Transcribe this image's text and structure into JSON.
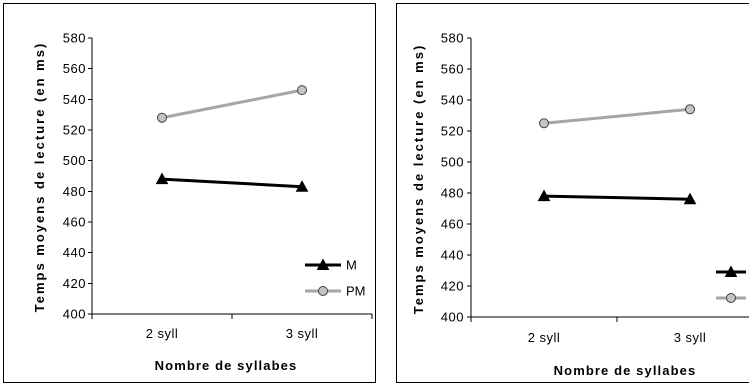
{
  "chart_data": [
    {
      "type": "line",
      "xlabel": "Nombre de syllabes",
      "ylabel": "Temps moyens de lecture (en ms)",
      "categories": [
        "2 syll",
        "3 syll"
      ],
      "ylim": [
        400,
        580
      ],
      "yticks": [
        400,
        420,
        440,
        460,
        480,
        500,
        520,
        540,
        560,
        580
      ],
      "grid": false,
      "legend": "bottom-right",
      "series": [
        {
          "name": "M",
          "values": [
            488,
            483
          ],
          "color": "#000000",
          "marker": "triangle",
          "marker_fill": "#000000",
          "marker_edge": "#000000"
        },
        {
          "name": "PM",
          "values": [
            528,
            546
          ],
          "color": "#a6a6a6",
          "marker": "circle",
          "marker_fill": "#c4c4c4",
          "marker_edge": "#404040"
        }
      ]
    },
    {
      "type": "line",
      "xlabel": "Nombre de syllabes",
      "ylabel": "Temps moyens de lecture (en ms)",
      "categories": [
        "2 syll",
        "3 syll"
      ],
      "ylim": [
        400,
        580
      ],
      "yticks": [
        400,
        420,
        440,
        460,
        480,
        500,
        520,
        540,
        560,
        580
      ],
      "grid": false,
      "legend": "bottom-right",
      "series": [
        {
          "values": [
            478,
            476
          ],
          "color": "#000000",
          "marker": "triangle",
          "marker_fill": "#000000",
          "marker_edge": "#000000"
        },
        {
          "values": [
            525,
            534
          ],
          "color": "#a6a6a6",
          "marker": "circle",
          "marker_fill": "#c4c4c4",
          "marker_edge": "#404040"
        }
      ]
    }
  ]
}
